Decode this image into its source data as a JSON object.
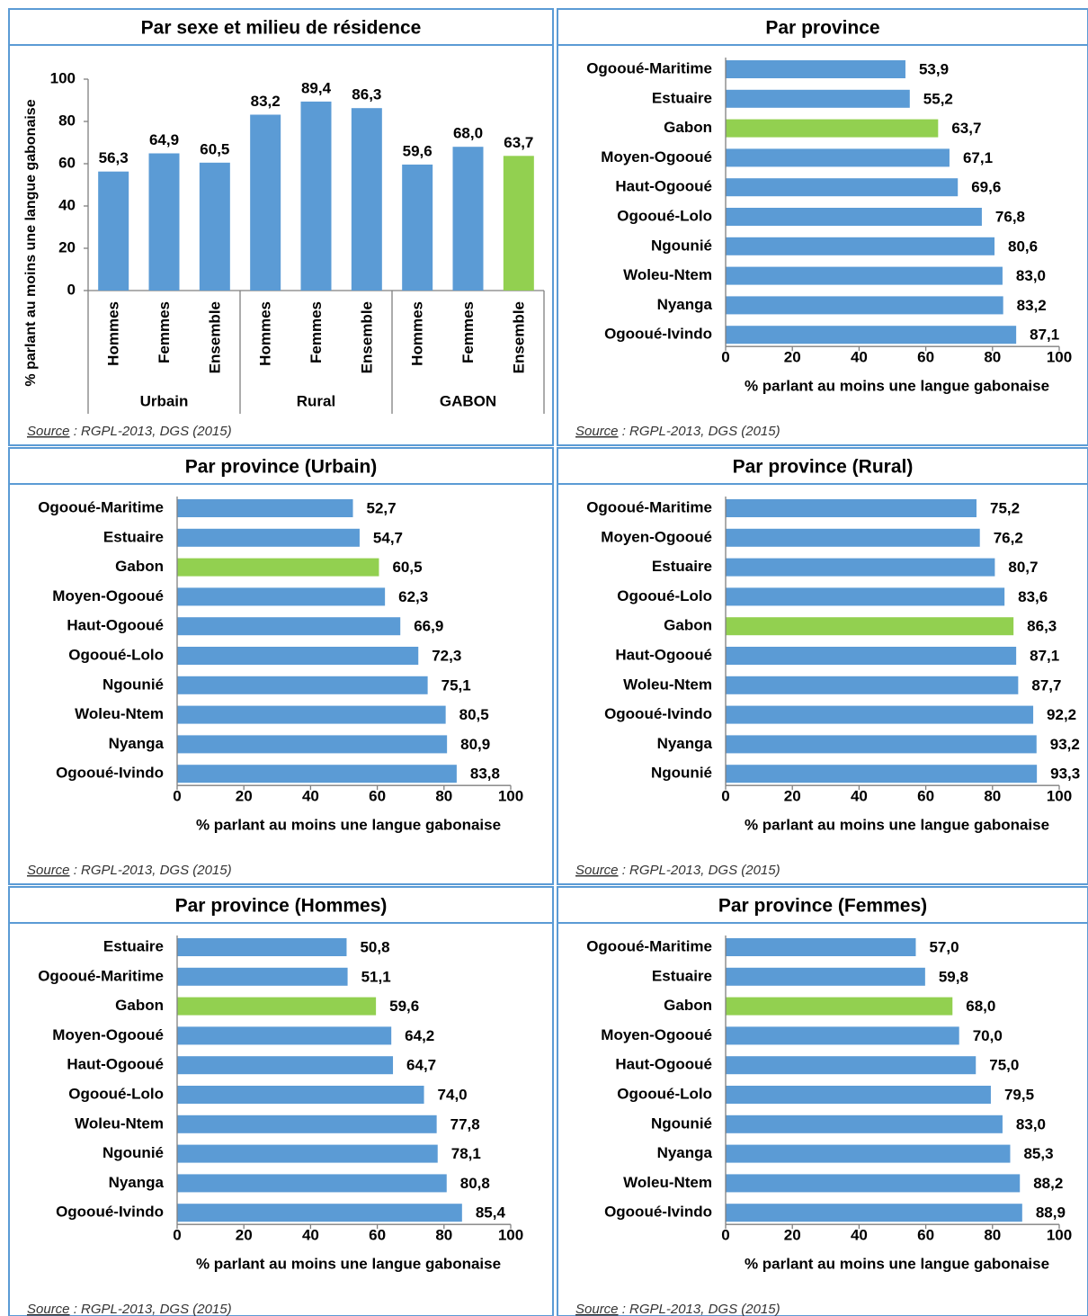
{
  "chart_data": [
    {
      "type": "bar",
      "title": "Par sexe et milieu de résidence",
      "categories": [
        "Hommes",
        "Femmes",
        "Ensemble",
        "Hommes",
        "Femmes",
        "Ensemble",
        "Hommes",
        "Femmes",
        "Ensemble"
      ],
      "groups": [
        "Urbain",
        "Rural",
        "GABON"
      ],
      "values": [
        56.3,
        64.9,
        60.5,
        83.2,
        89.4,
        86.3,
        59.6,
        68.0,
        63.7
      ],
      "value_labels": [
        "56,3",
        "64,9",
        "60,5",
        "83,2",
        "89,4",
        "86,3",
        "59,6",
        "68,0",
        "63,7"
      ],
      "colors": [
        "#5b9bd5",
        "#5b9bd5",
        "#5b9bd5",
        "#5b9bd5",
        "#5b9bd5",
        "#5b9bd5",
        "#5b9bd5",
        "#5b9bd5",
        "#92d050"
      ],
      "ylim": [
        0,
        100
      ],
      "yticks": [
        0,
        20,
        40,
        60,
        80,
        100
      ],
      "ylabel": "% parlant au moins une langue gabonaise",
      "source_label": "Source",
      "source_text": " : RGPL-2013, DGS (2015)"
    },
    {
      "type": "barh",
      "title": "Par province",
      "categories": [
        "Ogooué-Maritime",
        "Estuaire",
        "Gabon",
        "Moyen-Ogooué",
        "Haut-Ogooué",
        "Ogooué-Lolo",
        "Ngounié",
        "Woleu-Ntem",
        "Nyanga",
        "Ogooué-Ivindo"
      ],
      "values": [
        53.9,
        55.2,
        63.7,
        67.1,
        69.6,
        76.8,
        80.6,
        83.0,
        83.2,
        87.1
      ],
      "value_labels": [
        "53,9",
        "55,2",
        "63,7",
        "67,1",
        "69,6",
        "76,8",
        "80,6",
        "83,0",
        "83,2",
        "87,1"
      ],
      "colors": [
        "#5b9bd5",
        "#5b9bd5",
        "#92d050",
        "#5b9bd5",
        "#5b9bd5",
        "#5b9bd5",
        "#5b9bd5",
        "#5b9bd5",
        "#5b9bd5",
        "#5b9bd5"
      ],
      "xlim": [
        0,
        100
      ],
      "xticks": [
        0,
        20,
        40,
        60,
        80,
        100
      ],
      "xlabel": "% parlant au moins une langue gabonaise",
      "source_label": "Source",
      "source_text": " : RGPL-2013, DGS (2015)"
    },
    {
      "type": "barh",
      "title": "Par province (Urbain)",
      "categories": [
        "Ogooué-Maritime",
        "Estuaire",
        "Gabon",
        "Moyen-Ogooué",
        "Haut-Ogooué",
        "Ogooué-Lolo",
        "Ngounié",
        "Woleu-Ntem",
        "Nyanga",
        "Ogooué-Ivindo"
      ],
      "values": [
        52.7,
        54.7,
        60.5,
        62.3,
        66.9,
        72.3,
        75.1,
        80.5,
        80.9,
        83.8
      ],
      "value_labels": [
        "52,7",
        "54,7",
        "60,5",
        "62,3",
        "66,9",
        "72,3",
        "75,1",
        "80,5",
        "80,9",
        "83,8"
      ],
      "colors": [
        "#5b9bd5",
        "#5b9bd5",
        "#92d050",
        "#5b9bd5",
        "#5b9bd5",
        "#5b9bd5",
        "#5b9bd5",
        "#5b9bd5",
        "#5b9bd5",
        "#5b9bd5"
      ],
      "xlim": [
        0,
        100
      ],
      "xticks": [
        0,
        20,
        40,
        60,
        80,
        100
      ],
      "xlabel": "% parlant au moins une langue gabonaise",
      "source_label": "Source",
      "source_text": " : RGPL-2013, DGS (2015)"
    },
    {
      "type": "barh",
      "title": "Par province (Rural)",
      "categories": [
        "Ogooué-Maritime",
        "Moyen-Ogooué",
        "Estuaire",
        "Ogooué-Lolo",
        "Gabon",
        "Haut-Ogooué",
        "Woleu-Ntem",
        "Ogooué-Ivindo",
        "Nyanga",
        "Ngounié"
      ],
      "values": [
        75.2,
        76.2,
        80.7,
        83.6,
        86.3,
        87.1,
        87.7,
        92.2,
        93.2,
        93.3
      ],
      "value_labels": [
        "75,2",
        "76,2",
        "80,7",
        "83,6",
        "86,3",
        "87,1",
        "87,7",
        "92,2",
        "93,2",
        "93,3"
      ],
      "colors": [
        "#5b9bd5",
        "#5b9bd5",
        "#5b9bd5",
        "#5b9bd5",
        "#92d050",
        "#5b9bd5",
        "#5b9bd5",
        "#5b9bd5",
        "#5b9bd5",
        "#5b9bd5"
      ],
      "xlim": [
        0,
        100
      ],
      "xticks": [
        0,
        20,
        40,
        60,
        80,
        100
      ],
      "xlabel": "% parlant au moins une langue gabonaise",
      "source_label": "Source",
      "source_text": " : RGPL-2013, DGS (2015)"
    },
    {
      "type": "barh",
      "title": "Par province (Hommes)",
      "categories": [
        "Estuaire",
        "Ogooué-Maritime",
        "Gabon",
        "Moyen-Ogooué",
        "Haut-Ogooué",
        "Ogooué-Lolo",
        "Woleu-Ntem",
        "Ngounié",
        "Nyanga",
        "Ogooué-Ivindo"
      ],
      "values": [
        50.8,
        51.1,
        59.6,
        64.2,
        64.7,
        74.0,
        77.8,
        78.1,
        80.8,
        85.4
      ],
      "value_labels": [
        "50,8",
        "51,1",
        "59,6",
        "64,2",
        "64,7",
        "74,0",
        "77,8",
        "78,1",
        "80,8",
        "85,4"
      ],
      "colors": [
        "#5b9bd5",
        "#5b9bd5",
        "#92d050",
        "#5b9bd5",
        "#5b9bd5",
        "#5b9bd5",
        "#5b9bd5",
        "#5b9bd5",
        "#5b9bd5",
        "#5b9bd5"
      ],
      "xlim": [
        0,
        100
      ],
      "xticks": [
        0,
        20,
        40,
        60,
        80,
        100
      ],
      "xlabel": "% parlant au moins une langue gabonaise",
      "source_label": "Source",
      "source_text": " : RGPL-2013, DGS (2015)"
    },
    {
      "type": "barh",
      "title": "Par province (Femmes)",
      "categories": [
        "Ogooué-Maritime",
        "Estuaire",
        "Gabon",
        "Moyen-Ogooué",
        "Haut-Ogooué",
        "Ogooué-Lolo",
        "Ngounié",
        "Nyanga",
        "Woleu-Ntem",
        "Ogooué-Ivindo"
      ],
      "values": [
        57.0,
        59.8,
        68.0,
        70.0,
        75.0,
        79.5,
        83.0,
        85.3,
        88.2,
        88.9
      ],
      "value_labels": [
        "57,0",
        "59,8",
        "68,0",
        "70,0",
        "75,0",
        "79,5",
        "83,0",
        "85,3",
        "88,2",
        "88,9"
      ],
      "colors": [
        "#5b9bd5",
        "#5b9bd5",
        "#92d050",
        "#5b9bd5",
        "#5b9bd5",
        "#5b9bd5",
        "#5b9bd5",
        "#5b9bd5",
        "#5b9bd5",
        "#5b9bd5"
      ],
      "xlim": [
        0,
        100
      ],
      "xticks": [
        0,
        20,
        40,
        60,
        80,
        100
      ],
      "xlabel": "% parlant au moins une langue gabonaise",
      "source_label": "Source",
      "source_text": " : RGPL-2013, DGS (2015)"
    }
  ]
}
